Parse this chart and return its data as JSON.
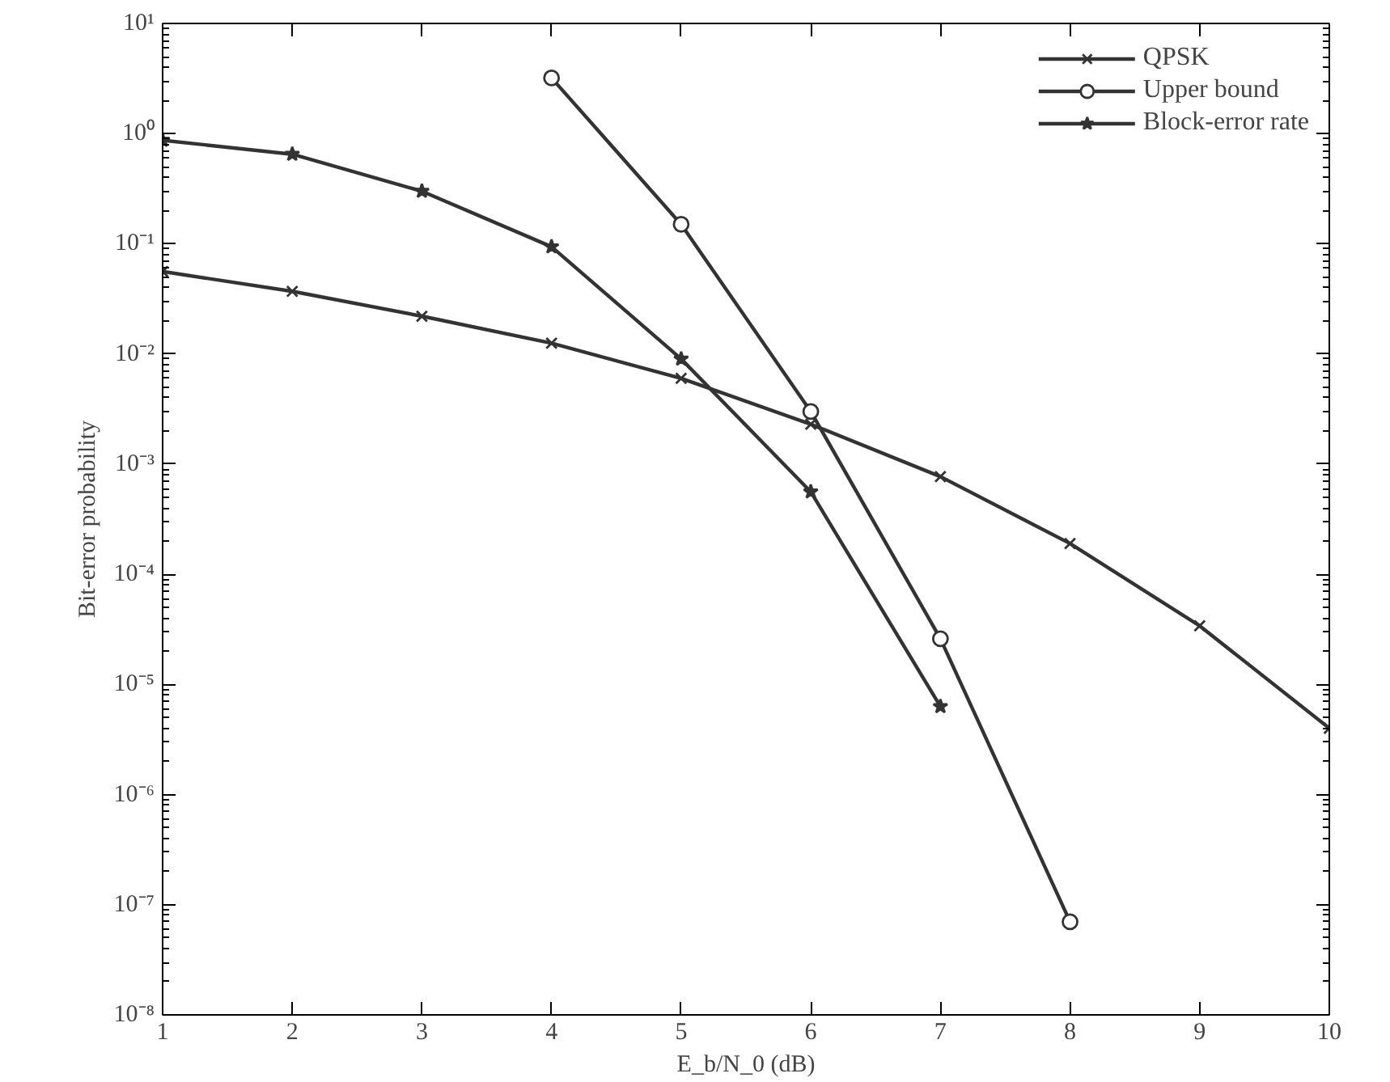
{
  "chart_data": {
    "type": "line",
    "xlabel": "E_b/N_0 (dB)",
    "ylabel": "Bit-error probability",
    "series": [
      {
        "name": "QPSK",
        "color": "#333333",
        "marker": "cross",
        "x": [
          1,
          2,
          3,
          4,
          5,
          6,
          7,
          8,
          9,
          10
        ],
        "values": [
          0.056,
          0.037,
          0.022,
          0.0125,
          0.006,
          0.0023,
          0.00077,
          0.00019,
          3.4e-05,
          4e-06
        ]
      },
      {
        "name": "Upper bound",
        "color": "#333333",
        "marker": "circle",
        "x": [
          4,
          5,
          6,
          7,
          8
        ],
        "values": [
          3.2,
          0.15,
          0.003,
          2.6e-05,
          7e-08
        ]
      },
      {
        "name": "Block-error rate",
        "color": "#333333",
        "marker": "star",
        "x": [
          1,
          2,
          3,
          4,
          5,
          6,
          7
        ],
        "values": [
          0.87,
          0.65,
          0.3,
          0.094,
          0.009,
          0.00056,
          6.3e-06
        ]
      }
    ],
    "log": "y",
    "xlim": [
      1,
      10
    ],
    "xticks": [
      1,
      2,
      3,
      4,
      5,
      6,
      7,
      8,
      9,
      10
    ],
    "ylim": [
      1e-08,
      10
    ],
    "yticks": [
      {
        "value": 1e-08,
        "label": "10⁻⁸"
      },
      {
        "value": 1e-07,
        "label": "10⁻⁷"
      },
      {
        "value": 1e-06,
        "label": "10⁻⁶"
      },
      {
        "value": 1e-05,
        "label": "10⁻⁵"
      },
      {
        "value": 0.0001,
        "label": "10⁻⁴"
      },
      {
        "value": 0.001,
        "label": "10⁻³"
      },
      {
        "value": 0.01,
        "label": "10⁻²"
      },
      {
        "value": 0.1,
        "label": "10⁻¹"
      },
      {
        "value": 1,
        "label": "10⁰"
      },
      {
        "value": 10,
        "label": "10¹"
      }
    ],
    "grid": false,
    "legend": "top right",
    "line_style": "solid"
  }
}
